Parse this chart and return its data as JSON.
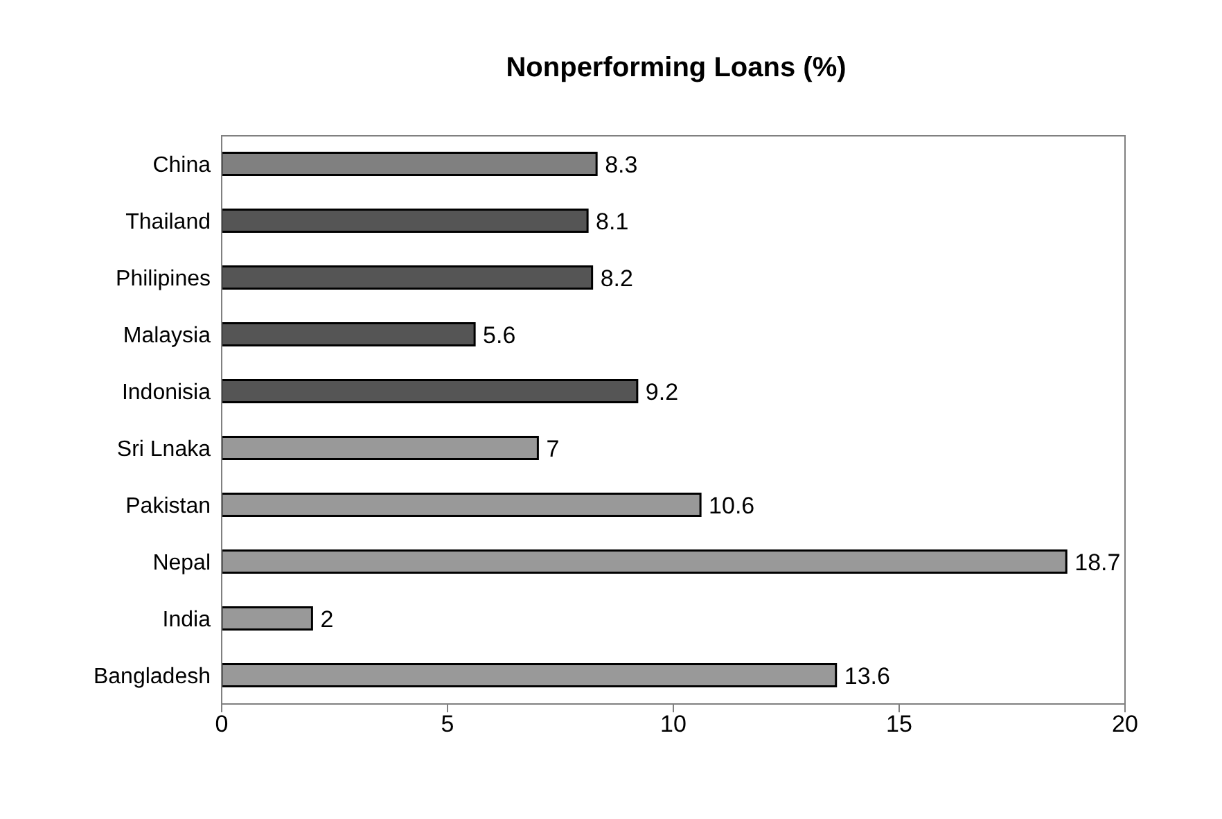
{
  "chart_data": {
    "type": "bar",
    "orientation": "horizontal",
    "title": "Nonperforming Loans (%)",
    "categories": [
      "China",
      "Thailand",
      "Philipines",
      "Malaysia",
      "Indonisia",
      "Sri Lnaka",
      "Pakistan",
      "Nepal",
      "India",
      "Bangladesh"
    ],
    "values": [
      8.3,
      8.1,
      8.2,
      5.6,
      9.2,
      7,
      10.6,
      18.7,
      2,
      13.6
    ],
    "colors": [
      "#808080",
      "#555555",
      "#555555",
      "#555555",
      "#555555",
      "#999999",
      "#999999",
      "#999999",
      "#999999",
      "#999999"
    ],
    "xlim": [
      0,
      20
    ],
    "xticks": [
      0,
      5,
      10,
      15,
      20
    ],
    "data_labels": true,
    "grid": false
  }
}
